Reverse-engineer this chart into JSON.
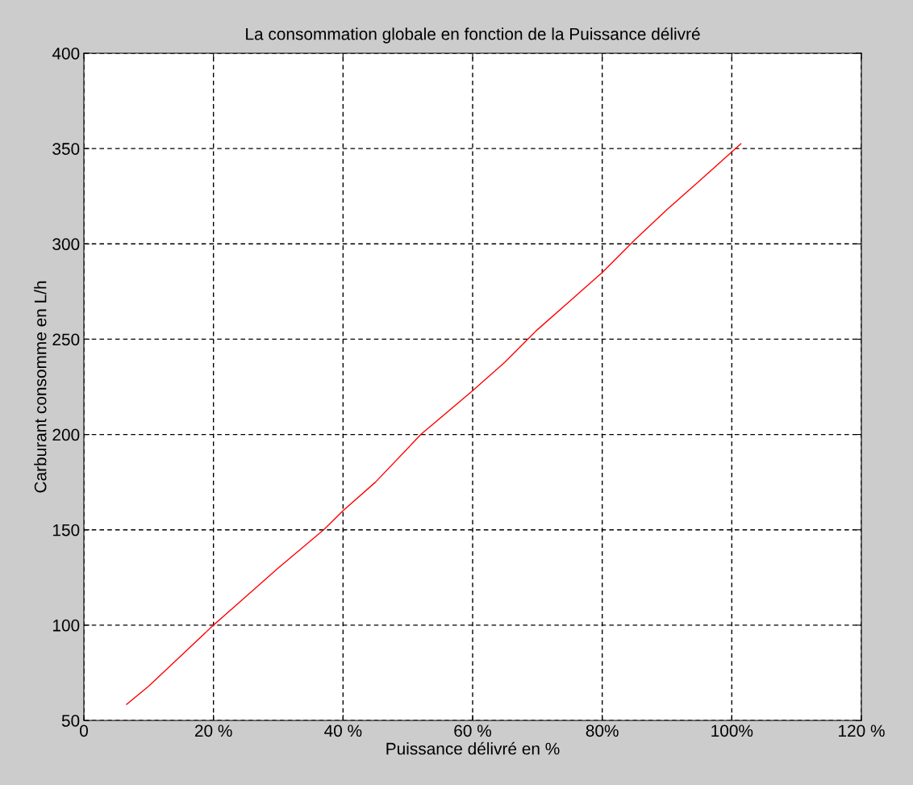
{
  "chart_data": {
    "type": "line",
    "title": "La consommation globale en fonction de la Puissance délivré",
    "xlabel": "Puissance délivré en %",
    "ylabel": "Carburant consomme en L/h",
    "x": [
      6.6,
      10,
      15,
      20,
      25,
      30,
      37,
      40,
      45,
      52,
      60,
      65,
      70,
      75,
      80,
      85,
      90,
      95,
      101.4
    ],
    "series": [
      {
        "color": "#ff0000",
        "values": [
          58.5,
          68,
          84,
          100,
          115,
          130,
          150,
          160,
          175,
          200,
          223,
          238,
          255,
          270,
          285,
          302,
          318,
          333,
          352.5
        ]
      }
    ],
    "xlim": [
      0,
      120
    ],
    "xticks": [
      0,
      {
        "value": 20,
        "label": "20 %"
      },
      {
        "value": 40,
        "label": "40 %"
      },
      {
        "value": 60,
        "label": "60 %"
      },
      {
        "value": 80,
        "label": "80%"
      },
      {
        "value": 100,
        "label": "100%"
      },
      {
        "value": 120,
        "label": "120 %"
      }
    ],
    "ylim": [
      50,
      400
    ],
    "yticks": [
      50,
      100,
      150,
      200,
      250,
      300,
      350,
      400
    ],
    "grid": true
  }
}
